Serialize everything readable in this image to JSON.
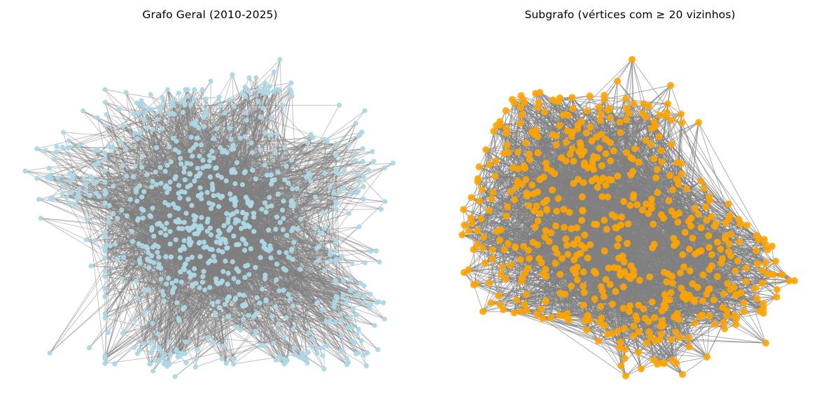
{
  "left_panel": {
    "title": "Grafo Geral (2010-2025)",
    "node_color": "#add8e6",
    "edge_color": "#808080",
    "edge_opacity": 0.5
  },
  "right_panel": {
    "title": "Subgrafo (vértices com ≥ 20 vizinhos)",
    "node_color": "#ffa500",
    "edge_color": "#808080",
    "edge_opacity": 0.7
  },
  "background_color": "#ffffff"
}
